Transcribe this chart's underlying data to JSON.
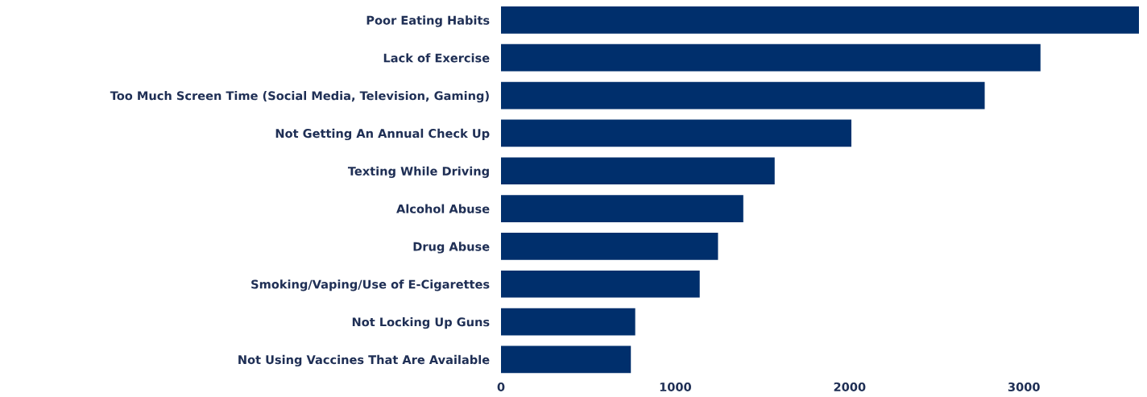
{
  "chart_data": {
    "type": "bar",
    "orientation": "horizontal",
    "categories": [
      "Poor Eating Habits",
      "Lack of Exercise",
      "Too Much Screen Time (Social Media, Television, Gaming)",
      "Not Getting An Annual Check Up",
      "Texting While Driving",
      "Alcohol Abuse",
      "Drug Abuse",
      "Smoking/Vaping/Use of E-Cigarettes",
      "Not Locking Up Guns",
      "Not Using Vaccines That Are Available"
    ],
    "values": [
      3660,
      3095,
      2775,
      2010,
      1570,
      1390,
      1245,
      1140,
      770,
      745
    ],
    "color": "#002f6c",
    "xlim": [
      0,
      3660
    ],
    "xticks": [
      0,
      1000,
      2000,
      3000
    ],
    "grid": false
  }
}
